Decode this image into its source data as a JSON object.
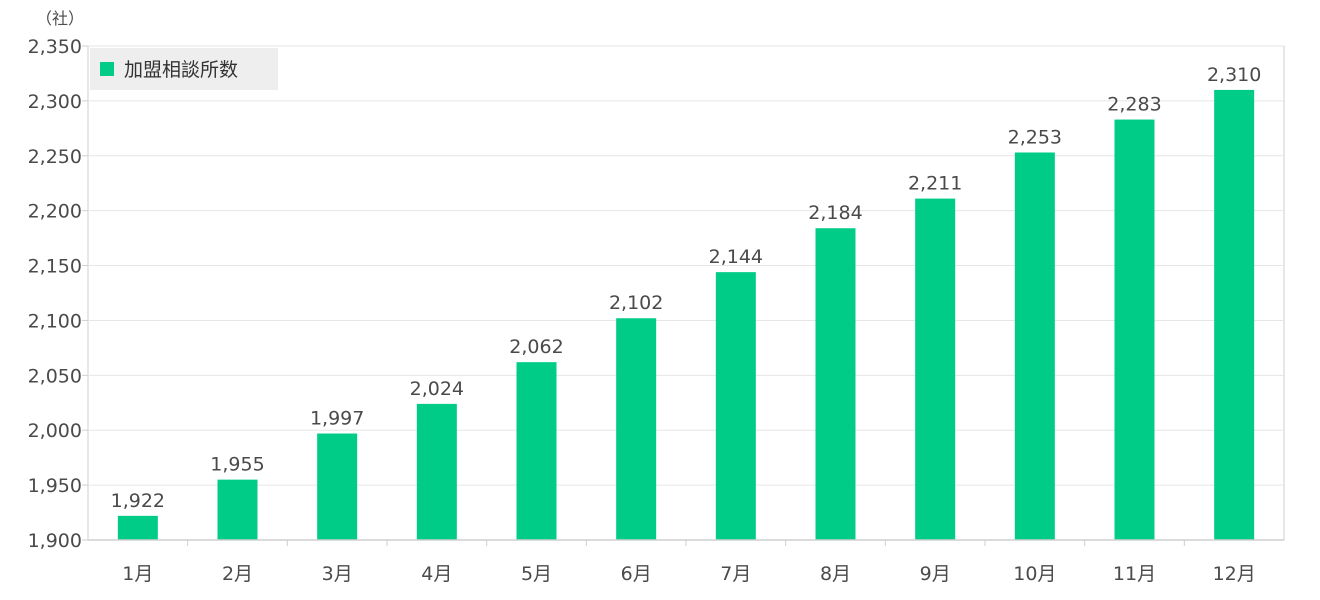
{
  "chart_data": {
    "type": "bar",
    "unit_label": "（社）",
    "categories": [
      "1月",
      "2月",
      "3月",
      "4月",
      "5月",
      "6月",
      "7月",
      "8月",
      "9月",
      "10月",
      "11月",
      "12月"
    ],
    "series": [
      {
        "name": "加盟相談所数",
        "values": [
          1922,
          1955,
          1997,
          2024,
          2062,
          2102,
          2144,
          2184,
          2211,
          2253,
          2283,
          2310
        ],
        "labels": [
          "1,922",
          "1,955",
          "1,997",
          "2,024",
          "2,062",
          "2,102",
          "2,144",
          "2,184",
          "2,211",
          "2,253",
          "2,283",
          "2,310"
        ]
      }
    ],
    "ylim": [
      1900,
      2350
    ],
    "yticks": [
      1900,
      1950,
      2000,
      2050,
      2100,
      2150,
      2200,
      2250,
      2300,
      2350
    ],
    "ytick_labels": [
      "1,900",
      "1,950",
      "2,000",
      "2,050",
      "2,100",
      "2,150",
      "2,200",
      "2,250",
      "2,300",
      "2,350"
    ],
    "grid": true,
    "legend_position": "top-left",
    "colors": {
      "bar": "#00cc88",
      "grid": "#e6e6e6",
      "axis": "#cfcfcf",
      "legend_bg": "#eeeeee"
    }
  }
}
